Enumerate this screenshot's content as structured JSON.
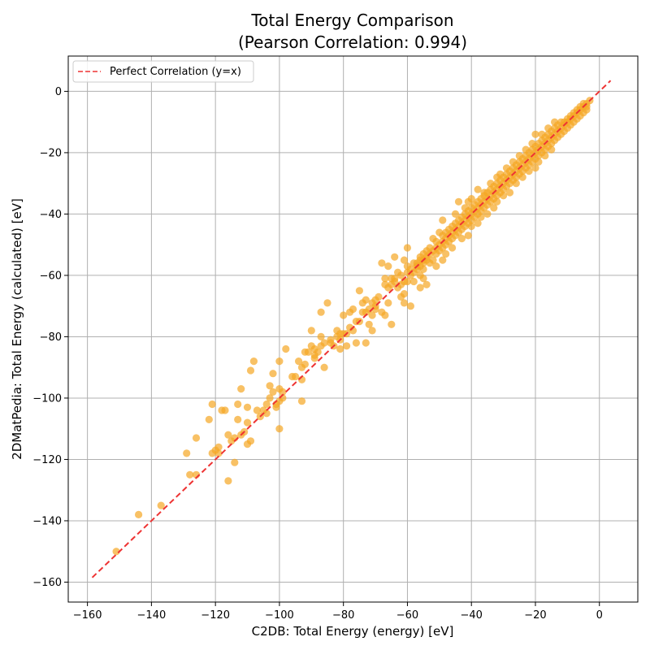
{
  "chart_data": {
    "type": "scatter",
    "title": "Total Energy Comparison",
    "subtitle": "(Pearson Correlation: 0.994)",
    "xlabel": "C2DB: Total Energy (energy) [eV]",
    "ylabel": "2DMatPedia: Total Energy (calculated) [eV]",
    "xlim": [
      -166,
      12
    ],
    "ylim": [
      -166.5,
      11.5
    ],
    "xticks": [
      -160,
      -140,
      -120,
      -100,
      -80,
      -60,
      -40,
      -20,
      0
    ],
    "yticks": [
      -160,
      -140,
      -120,
      -100,
      -80,
      -60,
      -40,
      -20,
      0
    ],
    "xtick_labels": [
      "−160",
      "−140",
      "−120",
      "−100",
      "−80",
      "−60",
      "−40",
      "−20",
      "0"
    ],
    "ytick_labels": [
      "−160",
      "−140",
      "−120",
      "−100",
      "−80",
      "−60",
      "−40",
      "−20",
      "0"
    ],
    "grid": true,
    "legend": {
      "placement": "upper-left",
      "entries": [
        "Perfect Correlation (y=x)"
      ]
    },
    "reference_line": {
      "label": "Perfect Correlation (y=x)",
      "from": [
        -158.5,
        -158.5
      ],
      "to": [
        3.5,
        3.5
      ],
      "color": "#ee3333",
      "style": "dashed"
    },
    "point_color": "#f5a623",
    "points": [
      [
        -151,
        -150
      ],
      [
        -144,
        -138
      ],
      [
        -137,
        -135
      ],
      [
        -129,
        -118
      ],
      [
        -128,
        -125
      ],
      [
        -126,
        -125
      ],
      [
        -126,
        -113
      ],
      [
        -122,
        -107
      ],
      [
        -121,
        -102
      ],
      [
        -121,
        -118
      ],
      [
        -120,
        -117
      ],
      [
        -119,
        -116
      ],
      [
        -119,
        -118
      ],
      [
        -118,
        -104
      ],
      [
        -117,
        -104
      ],
      [
        -116,
        -127
      ],
      [
        -116,
        -112
      ],
      [
        -115,
        -114
      ],
      [
        -114,
        -121
      ],
      [
        -114,
        -113
      ],
      [
        -113,
        -102
      ],
      [
        -113,
        -107
      ],
      [
        -112,
        -112
      ],
      [
        -112,
        -97
      ],
      [
        -111,
        -111
      ],
      [
        -110,
        -115
      ],
      [
        -110,
        -108
      ],
      [
        -110,
        -103
      ],
      [
        -109,
        -91
      ],
      [
        -109,
        -114
      ],
      [
        -108,
        -88
      ],
      [
        -107,
        -104
      ],
      [
        -106,
        -106
      ],
      [
        -105,
        -104
      ],
      [
        -104,
        -105
      ],
      [
        -104,
        -102
      ],
      [
        -103,
        -96
      ],
      [
        -103,
        -100
      ],
      [
        -102,
        -98
      ],
      [
        -102,
        -92
      ],
      [
        -101,
        -103
      ],
      [
        -101,
        -102
      ],
      [
        -100,
        -88
      ],
      [
        -100,
        -97
      ],
      [
        -100,
        -101
      ],
      [
        -100,
        -110
      ],
      [
        -99,
        -98
      ],
      [
        -99,
        -100
      ],
      [
        -98,
        -84
      ],
      [
        -96,
        -93
      ],
      [
        -95,
        -93
      ],
      [
        -94,
        -88
      ],
      [
        -93,
        -90
      ],
      [
        -93,
        -101
      ],
      [
        -93,
        -94
      ],
      [
        -92,
        -89
      ],
      [
        -92,
        -85
      ],
      [
        -91,
        -85
      ],
      [
        -90,
        -78
      ],
      [
        -90,
        -83
      ],
      [
        -89,
        -84
      ],
      [
        -89,
        -87
      ],
      [
        -89,
        -86
      ],
      [
        -88,
        -85
      ],
      [
        -87,
        -80
      ],
      [
        -87,
        -72
      ],
      [
        -87,
        -83
      ],
      [
        -86,
        -90
      ],
      [
        -86,
        -82
      ],
      [
        -85,
        -69
      ],
      [
        -84,
        -82
      ],
      [
        -84,
        -81
      ],
      [
        -83,
        -83
      ],
      [
        -82,
        -78
      ],
      [
        -82,
        -80
      ],
      [
        -81,
        -84
      ],
      [
        -81,
        -79
      ],
      [
        -81,
        -81
      ],
      [
        -80,
        -79
      ],
      [
        -80,
        -73
      ],
      [
        -79,
        -79
      ],
      [
        -79,
        -83
      ],
      [
        -78,
        -77
      ],
      [
        -78,
        -72
      ],
      [
        -77,
        -71
      ],
      [
        -77,
        -78
      ],
      [
        -76,
        -75
      ],
      [
        -76,
        -82
      ],
      [
        -75,
        -75
      ],
      [
        -75,
        -65
      ],
      [
        -74,
        -72
      ],
      [
        -74,
        -69
      ],
      [
        -73,
        -72
      ],
      [
        -73,
        -82
      ],
      [
        -73,
        -68
      ],
      [
        -72,
        -71
      ],
      [
        -72,
        -76
      ],
      [
        -71,
        -69
      ],
      [
        -71,
        -73
      ],
      [
        -71,
        -78
      ],
      [
        -70,
        -70
      ],
      [
        -70,
        -68
      ],
      [
        -70,
        -71
      ],
      [
        -69,
        -67
      ],
      [
        -68,
        -56
      ],
      [
        -68,
        -72
      ],
      [
        -67,
        -63
      ],
      [
        -67,
        -61
      ],
      [
        -67,
        -73
      ],
      [
        -66,
        -69
      ],
      [
        -66,
        -57
      ],
      [
        -66,
        -64
      ],
      [
        -65,
        -61
      ],
      [
        -65,
        -76
      ],
      [
        -65,
        -63
      ],
      [
        -64,
        -54
      ],
      [
        -64,
        -62
      ],
      [
        -64,
        -61
      ],
      [
        -63,
        -59
      ],
      [
        -63,
        -64
      ],
      [
        -62,
        -67
      ],
      [
        -62,
        -60
      ],
      [
        -62,
        -63
      ],
      [
        -61,
        -69
      ],
      [
        -61,
        -55
      ],
      [
        -61,
        -62
      ],
      [
        -61,
        -66
      ],
      [
        -60,
        -51
      ],
      [
        -60,
        -57
      ],
      [
        -60,
        -59
      ],
      [
        -60,
        -62
      ],
      [
        -59,
        -58
      ],
      [
        -59,
        -70
      ],
      [
        -59,
        -60
      ],
      [
        -58,
        -56
      ],
      [
        -58,
        -59
      ],
      [
        -58,
        -62
      ],
      [
        -57,
        -57
      ],
      [
        -57,
        -56
      ],
      [
        -57,
        -58
      ],
      [
        -56,
        -54
      ],
      [
        -56,
        -55
      ],
      [
        -56,
        -57
      ],
      [
        -56,
        -60
      ],
      [
        -56,
        -64
      ],
      [
        -55,
        -55
      ],
      [
        -55,
        -53
      ],
      [
        -55,
        -56
      ],
      [
        -55,
        -58
      ],
      [
        -55,
        -61
      ],
      [
        -54,
        -52
      ],
      [
        -54,
        -54
      ],
      [
        -54,
        -55
      ],
      [
        -54,
        -63
      ],
      [
        -53,
        -51
      ],
      [
        -53,
        -53
      ],
      [
        -53,
        -56
      ],
      [
        -52,
        -48
      ],
      [
        -52,
        -52
      ],
      [
        -52,
        -55
      ],
      [
        -51,
        -49
      ],
      [
        -51,
        -51
      ],
      [
        -51,
        -53
      ],
      [
        -51,
        -57
      ],
      [
        -50,
        -46
      ],
      [
        -50,
        -50
      ],
      [
        -50,
        -52
      ],
      [
        -49,
        -47
      ],
      [
        -49,
        -49
      ],
      [
        -49,
        -51
      ],
      [
        -49,
        -42
      ],
      [
        -49,
        -55
      ],
      [
        -48,
        -46
      ],
      [
        -48,
        -48
      ],
      [
        -48,
        -50
      ],
      [
        -48,
        -53
      ],
      [
        -47,
        -45
      ],
      [
        -47,
        -47
      ],
      [
        -47,
        -49
      ],
      [
        -46,
        -44
      ],
      [
        -46,
        -46
      ],
      [
        -46,
        -48
      ],
      [
        -46,
        -51
      ],
      [
        -45,
        -43
      ],
      [
        -45,
        -45
      ],
      [
        -45,
        -47
      ],
      [
        -45,
        -40
      ],
      [
        -44,
        -42
      ],
      [
        -44,
        -44
      ],
      [
        -44,
        -46
      ],
      [
        -44,
        -36
      ],
      [
        -43,
        -41
      ],
      [
        -43,
        -43
      ],
      [
        -43,
        -45
      ],
      [
        -43,
        -48
      ],
      [
        -42,
        -40
      ],
      [
        -42,
        -42
      ],
      [
        -42,
        -44
      ],
      [
        -42,
        -38
      ],
      [
        -41,
        -39
      ],
      [
        -41,
        -41
      ],
      [
        -41,
        -43
      ],
      [
        -41,
        -36
      ],
      [
        -41,
        -47
      ],
      [
        -40,
        -38
      ],
      [
        -40,
        -40
      ],
      [
        -40,
        -42
      ],
      [
        -40,
        -35
      ],
      [
        -40,
        -44
      ],
      [
        -39,
        -37
      ],
      [
        -39,
        -39
      ],
      [
        -39,
        -41
      ],
      [
        -38,
        -36
      ],
      [
        -38,
        -38
      ],
      [
        -38,
        -40
      ],
      [
        -38,
        -32
      ],
      [
        -38,
        -43
      ],
      [
        -37,
        -35
      ],
      [
        -37,
        -37
      ],
      [
        -37,
        -39
      ],
      [
        -37,
        -41
      ],
      [
        -36,
        -34
      ],
      [
        -36,
        -36
      ],
      [
        -36,
        -38
      ],
      [
        -36,
        -33
      ],
      [
        -35,
        -33
      ],
      [
        -35,
        -35
      ],
      [
        -35,
        -37
      ],
      [
        -35,
        -40
      ],
      [
        -34,
        -32
      ],
      [
        -34,
        -34
      ],
      [
        -34,
        -36
      ],
      [
        -34,
        -30
      ],
      [
        -33,
        -31
      ],
      [
        -33,
        -33
      ],
      [
        -33,
        -35
      ],
      [
        -33,
        -38
      ],
      [
        -32,
        -30
      ],
      [
        -32,
        -32
      ],
      [
        -32,
        -34
      ],
      [
        -32,
        -28
      ],
      [
        -32,
        -36
      ],
      [
        -31,
        -29
      ],
      [
        -31,
        -31
      ],
      [
        -31,
        -33
      ],
      [
        -31,
        -27
      ],
      [
        -30,
        -28
      ],
      [
        -30,
        -30
      ],
      [
        -30,
        -32
      ],
      [
        -30,
        -34
      ],
      [
        -29,
        -27
      ],
      [
        -29,
        -29
      ],
      [
        -29,
        -31
      ],
      [
        -29,
        -25
      ],
      [
        -28,
        -26
      ],
      [
        -28,
        -28
      ],
      [
        -28,
        -30
      ],
      [
        -28,
        -33
      ],
      [
        -27,
        -25
      ],
      [
        -27,
        -27
      ],
      [
        -27,
        -29
      ],
      [
        -27,
        -23
      ],
      [
        -26,
        -24
      ],
      [
        -26,
        -26
      ],
      [
        -26,
        -28
      ],
      [
        -26,
        -30
      ],
      [
        -25,
        -23
      ],
      [
        -25,
        -25
      ],
      [
        -25,
        -27
      ],
      [
        -25,
        -21
      ],
      [
        -24,
        -22
      ],
      [
        -24,
        -24
      ],
      [
        -24,
        -26
      ],
      [
        -24,
        -28
      ],
      [
        -23,
        -21
      ],
      [
        -23,
        -23
      ],
      [
        -23,
        -25
      ],
      [
        -23,
        -19
      ],
      [
        -22,
        -20
      ],
      [
        -22,
        -22
      ],
      [
        -22,
        -24
      ],
      [
        -22,
        -26
      ],
      [
        -21,
        -19
      ],
      [
        -21,
        -21
      ],
      [
        -21,
        -23
      ],
      [
        -21,
        -17
      ],
      [
        -20,
        -18
      ],
      [
        -20,
        -20
      ],
      [
        -20,
        -22
      ],
      [
        -20,
        -14
      ],
      [
        -20,
        -25
      ],
      [
        -19,
        -17
      ],
      [
        -19,
        -19
      ],
      [
        -19,
        -21
      ],
      [
        -19,
        -23
      ],
      [
        -18,
        -16
      ],
      [
        -18,
        -18
      ],
      [
        -18,
        -20
      ],
      [
        -18,
        -14
      ],
      [
        -17,
        -15
      ],
      [
        -17,
        -17
      ],
      [
        -17,
        -19
      ],
      [
        -17,
        -21
      ],
      [
        -16,
        -14
      ],
      [
        -16,
        -16
      ],
      [
        -16,
        -18
      ],
      [
        -16,
        -12
      ],
      [
        -15,
        -13
      ],
      [
        -15,
        -15
      ],
      [
        -15,
        -17
      ],
      [
        -15,
        -19
      ],
      [
        -14,
        -12
      ],
      [
        -14,
        -14
      ],
      [
        -14,
        -16
      ],
      [
        -14,
        -10
      ],
      [
        -13,
        -11
      ],
      [
        -13,
        -13
      ],
      [
        -13,
        -15
      ],
      [
        -12,
        -10
      ],
      [
        -12,
        -12
      ],
      [
        -12,
        -14
      ],
      [
        -11,
        -10
      ],
      [
        -11,
        -11
      ],
      [
        -11,
        -13
      ],
      [
        -10,
        -9
      ],
      [
        -10,
        -10
      ],
      [
        -10,
        -12
      ],
      [
        -9,
        -8
      ],
      [
        -9,
        -9
      ],
      [
        -9,
        -11
      ],
      [
        -8,
        -7
      ],
      [
        -8,
        -8
      ],
      [
        -8,
        -10
      ],
      [
        -7,
        -6
      ],
      [
        -7,
        -7
      ],
      [
        -7,
        -9
      ],
      [
        -6,
        -5
      ],
      [
        -6,
        -6
      ],
      [
        -6,
        -8
      ],
      [
        -5,
        -4
      ],
      [
        -5,
        -5
      ],
      [
        -5,
        -7
      ],
      [
        -4,
        -4
      ],
      [
        -4,
        -5
      ],
      [
        -4,
        -6
      ],
      [
        -3,
        -3
      ]
    ]
  }
}
